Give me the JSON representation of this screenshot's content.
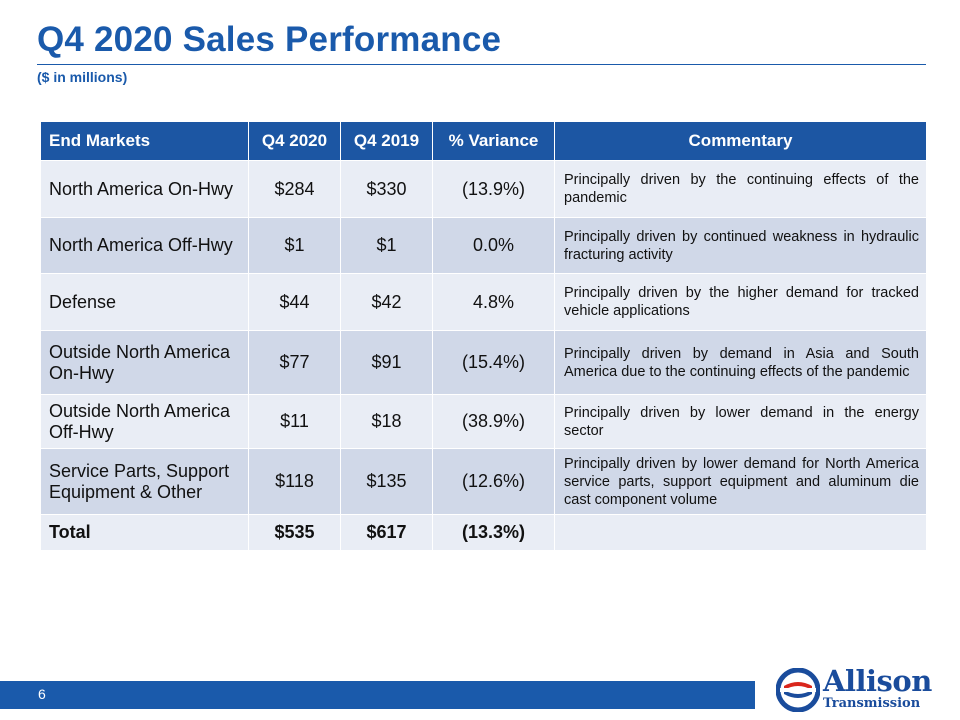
{
  "header": {
    "title": "Q4 2020 Sales Performance",
    "subtitle": "($ in millions)"
  },
  "table": {
    "columns": [
      "End Markets",
      "Q4 2020",
      "Q4 2019",
      "% Variance",
      "Commentary"
    ],
    "rows": [
      {
        "market": "North America On-Hwy",
        "q4_2020": "$284",
        "q4_2019": "$330",
        "variance": "(13.9%)",
        "commentary": "Principally driven by the continuing effects of the pandemic"
      },
      {
        "market": "North America Off-Hwy",
        "q4_2020": "$1",
        "q4_2019": "$1",
        "variance": "0.0%",
        "commentary": "Principally driven by continued weakness in hydraulic fracturing activity"
      },
      {
        "market": "Defense",
        "q4_2020": "$44",
        "q4_2019": "$42",
        "variance": "4.8%",
        "commentary": "Principally driven by the higher demand for tracked vehicle applications"
      },
      {
        "market": "Outside North America On-Hwy",
        "q4_2020": "$77",
        "q4_2019": "$91",
        "variance": "(15.4%)",
        "commentary": "Principally driven by demand in Asia and South America due to the continuing effects of the pandemic"
      },
      {
        "market": "Outside North America Off-Hwy",
        "q4_2020": "$11",
        "q4_2019": "$18",
        "variance": "(38.9%)",
        "commentary": "Principally driven by lower demand in the energy sector"
      },
      {
        "market": "Service Parts, Support Equipment & Other",
        "q4_2020": "$118",
        "q4_2019": "$135",
        "variance": "(12.6%)",
        "commentary": "Principally driven by lower demand for North America service parts, support equipment and aluminum die cast component volume"
      }
    ],
    "total": {
      "market": "Total",
      "q4_2020": "$535",
      "q4_2019": "$617",
      "variance": "(13.3%)",
      "commentary": ""
    }
  },
  "footer": {
    "page_number": "6",
    "logo": {
      "name": "Allison",
      "subtitle": "Transmission",
      "icon": "allison-transmission-logo-icon",
      "colors": {
        "blue": "#1a4c9c",
        "red": "#d9261c"
      }
    }
  },
  "colors": {
    "title_blue": "#1a5aab",
    "header_blue": "#1c56a3",
    "row_light": "#e9edf5",
    "row_dark": "#d0d8e8"
  }
}
